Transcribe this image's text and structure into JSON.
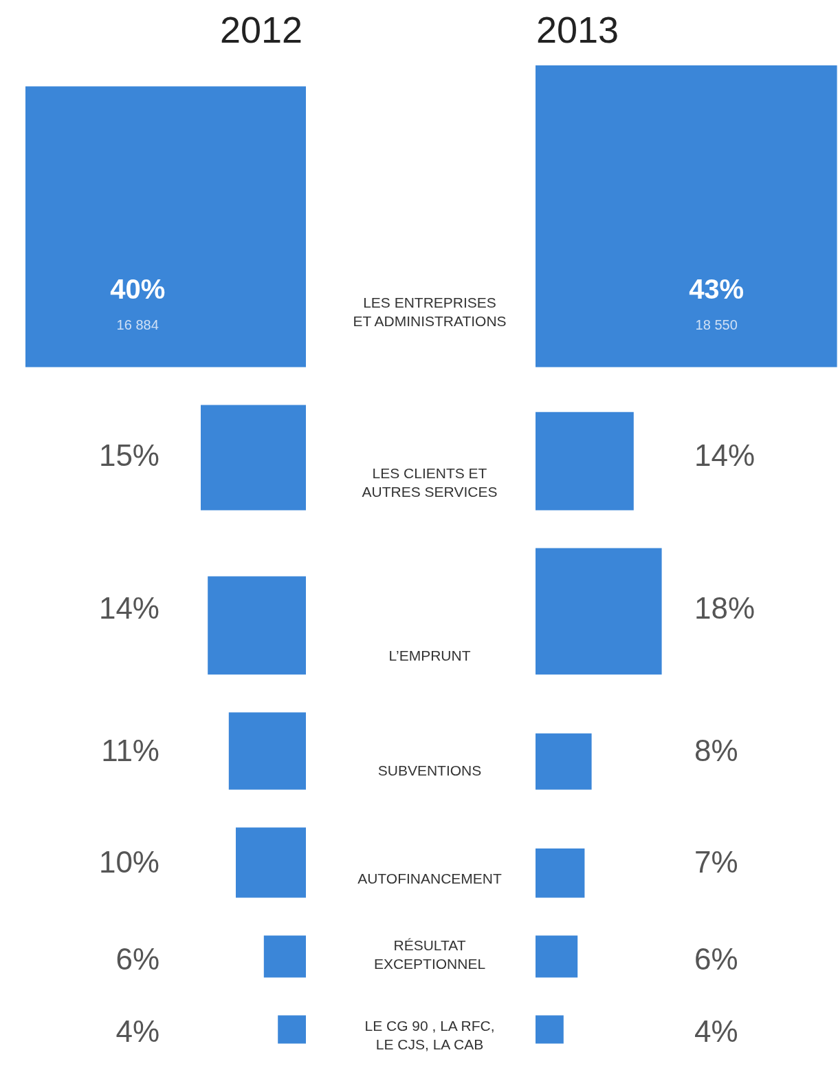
{
  "chart_data": {
    "type": "other",
    "categories": [
      "LES ENTREPRISES ET ADMINISTRATIONS",
      "LES CLIENTS ET AUTRES SERVICES",
      "L’EMPRUNT",
      "SUBVENTIONS",
      "AUTOFINANCEMENT",
      "RÉSULTAT EXCEPTIONNEL",
      "LE CG 90 , LA RFC, LE CJS, LA CAB"
    ],
    "series": [
      {
        "name": "2012",
        "color": "#3b86d8",
        "values": [
          40,
          15,
          14,
          11,
          10,
          6,
          4
        ],
        "value_labels": [
          "40%",
          "15%",
          "14%",
          "11%",
          "10%",
          "6%",
          "4%"
        ]
      },
      {
        "name": "2013",
        "color": "#3b86d8",
        "values": [
          43,
          14,
          18,
          8,
          7,
          6,
          4
        ],
        "value_labels": [
          "43%",
          "14%",
          "18%",
          "8%",
          "7%",
          "6%",
          "4%"
        ]
      }
    ],
    "annotations": [
      "16 884",
      "18 550"
    ]
  }
}
